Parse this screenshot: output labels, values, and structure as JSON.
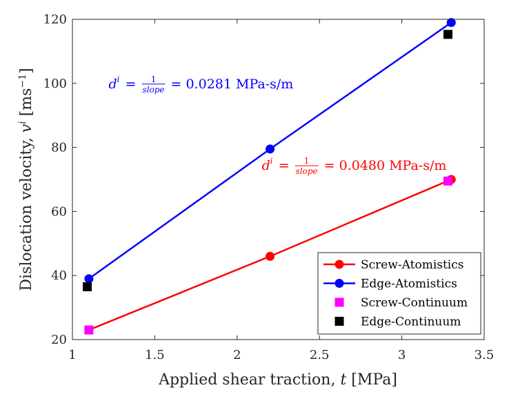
{
  "chart_data": {
    "type": "line",
    "xlabel": "Applied shear traction, t [MPa]",
    "ylabel": "Dislocation velocity, v^i [ms^-1]",
    "xlim": [
      1,
      3.5
    ],
    "ylim": [
      20,
      120
    ],
    "xticks": [
      1,
      1.5,
      2,
      2.5,
      3,
      3.5
    ],
    "yticks": [
      20,
      40,
      60,
      80,
      100,
      120
    ],
    "xtick_labels": [
      "1",
      "1.5",
      "2",
      "2.5",
      "3",
      "3.5"
    ],
    "ytick_labels": [
      "20",
      "40",
      "60",
      "80",
      "100",
      "120"
    ],
    "legend_position": "bottom-right",
    "series": [
      {
        "name": "Screw-Atomistics",
        "style": "line-circle",
        "color": "#ff0000",
        "x": [
          1.1,
          2.2,
          3.3
        ],
        "y": [
          23,
          46,
          70
        ]
      },
      {
        "name": "Edge-Atomistics",
        "style": "line-circle",
        "color": "#0000ff",
        "x": [
          1.1,
          2.2,
          3.3
        ],
        "y": [
          39,
          79.5,
          119
        ]
      },
      {
        "name": "Screw-Continuum",
        "style": "square",
        "color": "#ff00ff",
        "x": [
          1.1,
          3.28
        ],
        "y": [
          23,
          69.5
        ]
      },
      {
        "name": "Edge-Continuum",
        "style": "square",
        "color": "#000000",
        "x": [
          1.09,
          3.28
        ],
        "y": [
          36.5,
          115.3
        ]
      }
    ],
    "annotations": [
      {
        "series": "Edge-Atomistics",
        "color": "#0000ff",
        "prefix": "d",
        "sup": "i",
        "eq": "=",
        "num": "1",
        "den": "slope",
        "value": "= 0.0281 MPa-s/m",
        "anchor_x": 1.22,
        "anchor_y": 100
      },
      {
        "series": "Screw-Atomistics",
        "color": "#ff0000",
        "prefix": "d",
        "sup": "i",
        "eq": "=",
        "num": "1",
        "den": "slope",
        "value": "= 0.0480 MPa-s/m",
        "anchor_x": 2.15,
        "anchor_y": 74.5
      }
    ]
  }
}
